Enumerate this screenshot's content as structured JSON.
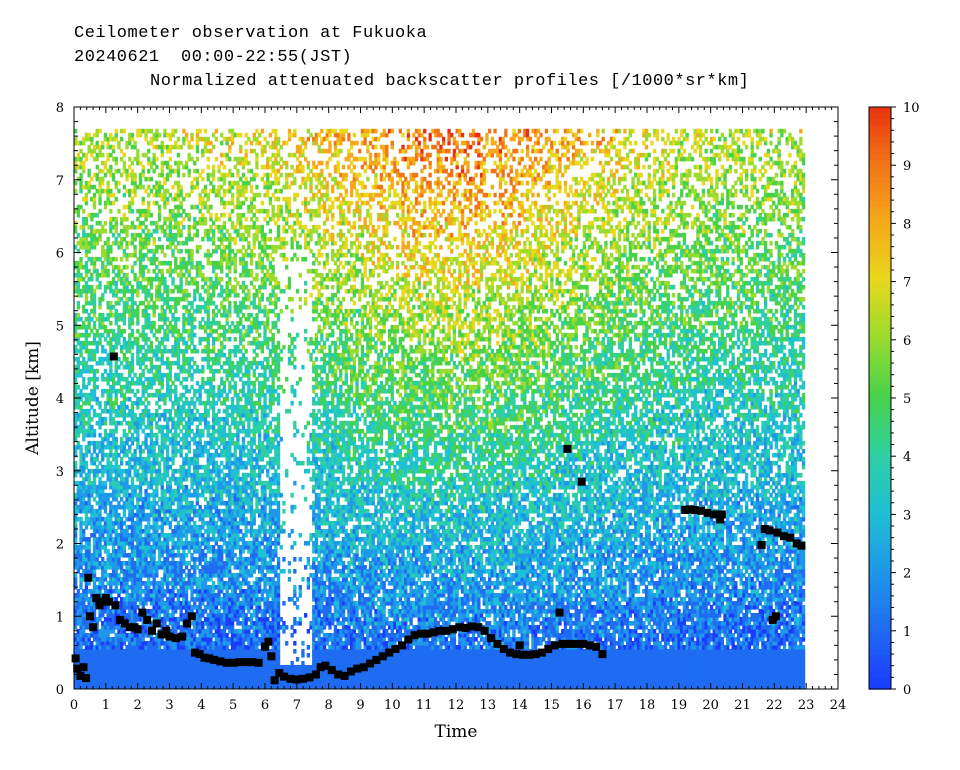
{
  "chart_data": {
    "type": "heatmap",
    "title_lines": [
      "Ceilometer observation at Fukuoka",
      "20240621  00:00-22:55(JST)",
      "Normalized attenuated backscatter profiles [/1000*sr*km]"
    ],
    "xlabel": "Time",
    "ylabel": "Altitude [km]",
    "xlim": [
      0,
      24
    ],
    "ylim": [
      0,
      8
    ],
    "data_extent": {
      "time_end": 22.917,
      "altitude_top": 7.67
    },
    "x_ticks": [
      "0",
      "1",
      "2",
      "3",
      "4",
      "5",
      "6",
      "7",
      "8",
      "9",
      "10",
      "11",
      "12",
      "13",
      "14",
      "15",
      "16",
      "17",
      "18",
      "19",
      "20",
      "21",
      "22",
      "23",
      "24"
    ],
    "y_ticks": [
      "0",
      "1",
      "2",
      "3",
      "4",
      "5",
      "6",
      "7",
      "8"
    ],
    "colorbar": {
      "min": 0,
      "max": 10,
      "ticks": [
        "0",
        "1",
        "2",
        "3",
        "4",
        "5",
        "6",
        "7",
        "8",
        "9",
        "10"
      ],
      "colors": [
        "#1a3cff",
        "#1f6cf2",
        "#1e98e8",
        "#20c0d4",
        "#2ecfa0",
        "#48d24a",
        "#9adb2e",
        "#e8d81c",
        "#f5a81a",
        "#f27416",
        "#e83010"
      ]
    },
    "cloud_base_points": [
      [
        0.05,
        0.42
      ],
      [
        0.1,
        0.28
      ],
      [
        0.2,
        0.18
      ],
      [
        0.3,
        0.3
      ],
      [
        0.38,
        0.15
      ],
      [
        0.45,
        1.53
      ],
      [
        0.5,
        1.0
      ],
      [
        0.6,
        0.85
      ],
      [
        0.7,
        1.25
      ],
      [
        0.8,
        1.15
      ],
      [
        0.9,
        1.2
      ],
      [
        1.0,
        1.25
      ],
      [
        1.1,
        1.2
      ],
      [
        1.25,
        4.57
      ],
      [
        1.3,
        1.15
      ],
      [
        1.45,
        0.95
      ],
      [
        1.6,
        0.9
      ],
      [
        1.75,
        0.85
      ],
      [
        1.9,
        0.85
      ],
      [
        2.0,
        0.82
      ],
      [
        2.15,
        1.05
      ],
      [
        2.3,
        0.95
      ],
      [
        2.45,
        0.8
      ],
      [
        2.6,
        0.9
      ],
      [
        2.75,
        0.75
      ],
      [
        2.9,
        0.8
      ],
      [
        3.0,
        0.72
      ],
      [
        3.2,
        0.7
      ],
      [
        3.4,
        0.72
      ],
      [
        3.55,
        0.9
      ],
      [
        3.7,
        1.0
      ],
      [
        3.8,
        0.5
      ],
      [
        3.95,
        0.48
      ],
      [
        4.1,
        0.43
      ],
      [
        4.25,
        0.42
      ],
      [
        4.4,
        0.4
      ],
      [
        4.6,
        0.38
      ],
      [
        4.8,
        0.36
      ],
      [
        5.0,
        0.36
      ],
      [
        5.2,
        0.37
      ],
      [
        5.4,
        0.37
      ],
      [
        5.6,
        0.37
      ],
      [
        5.8,
        0.36
      ],
      [
        6.0,
        0.58
      ],
      [
        6.1,
        0.65
      ],
      [
        6.2,
        0.45
      ],
      [
        6.3,
        0.12
      ],
      [
        6.45,
        0.22
      ],
      [
        6.6,
        0.17
      ],
      [
        6.8,
        0.14
      ],
      [
        7.0,
        0.13
      ],
      [
        7.2,
        0.14
      ],
      [
        7.4,
        0.16
      ],
      [
        7.6,
        0.2
      ],
      [
        7.75,
        0.3
      ],
      [
        7.9,
        0.32
      ],
      [
        8.1,
        0.26
      ],
      [
        8.3,
        0.2
      ],
      [
        8.5,
        0.18
      ],
      [
        8.7,
        0.24
      ],
      [
        8.9,
        0.28
      ],
      [
        9.1,
        0.3
      ],
      [
        9.3,
        0.35
      ],
      [
        9.5,
        0.4
      ],
      [
        9.7,
        0.45
      ],
      [
        9.9,
        0.5
      ],
      [
        10.1,
        0.55
      ],
      [
        10.3,
        0.6
      ],
      [
        10.5,
        0.68
      ],
      [
        10.7,
        0.74
      ],
      [
        10.9,
        0.76
      ],
      [
        11.1,
        0.76
      ],
      [
        11.3,
        0.78
      ],
      [
        11.5,
        0.8
      ],
      [
        11.7,
        0.8
      ],
      [
        11.9,
        0.82
      ],
      [
        12.1,
        0.85
      ],
      [
        12.3,
        0.84
      ],
      [
        12.5,
        0.86
      ],
      [
        12.7,
        0.85
      ],
      [
        12.9,
        0.8
      ],
      [
        13.1,
        0.7
      ],
      [
        13.3,
        0.62
      ],
      [
        13.5,
        0.55
      ],
      [
        13.7,
        0.5
      ],
      [
        13.9,
        0.48
      ],
      [
        14.0,
        0.6
      ],
      [
        14.1,
        0.47
      ],
      [
        14.3,
        0.47
      ],
      [
        14.5,
        0.48
      ],
      [
        14.7,
        0.5
      ],
      [
        14.9,
        0.55
      ],
      [
        15.1,
        0.6
      ],
      [
        15.25,
        1.05
      ],
      [
        15.35,
        0.62
      ],
      [
        15.5,
        3.3
      ],
      [
        15.55,
        0.62
      ],
      [
        15.75,
        0.62
      ],
      [
        15.95,
        2.85
      ],
      [
        16.0,
        0.62
      ],
      [
        16.2,
        0.6
      ],
      [
        16.4,
        0.58
      ],
      [
        16.6,
        0.48
      ],
      [
        19.2,
        2.46
      ],
      [
        19.35,
        2.47
      ],
      [
        19.5,
        2.46
      ],
      [
        19.7,
        2.45
      ],
      [
        19.9,
        2.42
      ],
      [
        20.1,
        2.4
      ],
      [
        20.3,
        2.33
      ],
      [
        20.35,
        2.4
      ],
      [
        21.6,
        1.98
      ],
      [
        21.7,
        2.2
      ],
      [
        21.85,
        2.18
      ],
      [
        21.95,
        0.95
      ],
      [
        22.05,
        1.0
      ],
      [
        22.1,
        2.15
      ],
      [
        22.3,
        2.1
      ],
      [
        22.5,
        2.08
      ],
      [
        22.7,
        2.0
      ],
      [
        22.85,
        1.97
      ]
    ]
  }
}
